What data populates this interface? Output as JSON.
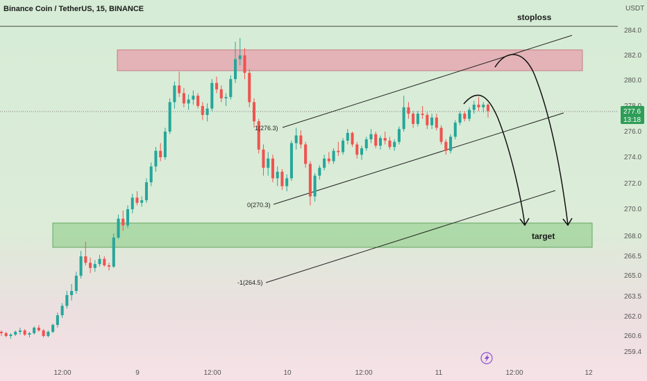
{
  "chart_data": {
    "type": "candlestick",
    "title": "Binance Coin / TetherUS, 15, BINANCE",
    "currency": "USDT",
    "y_ticks": [
      284.0,
      282.0,
      280.0,
      278.0,
      276.0,
      274.0,
      272.0,
      270.0,
      268.0,
      266.5,
      265.0,
      263.5,
      262.0,
      260.6,
      259.4
    ],
    "y_tick_labels": [
      "284.0",
      "282.0",
      "280.0",
      "278.0",
      "276.0",
      "274.0",
      "272.0",
      "270.0",
      "268.0",
      "266.5",
      "265.0",
      "263.5",
      "262.0",
      "260.6",
      "259.4"
    ],
    "x_ticks": [
      "12:00",
      "9",
      "12:00",
      "10",
      "12:00",
      "11",
      "12:00",
      "12"
    ],
    "last_price": "277.6",
    "countdown": "13:18",
    "up_color": "#26a69a",
    "down_color": "#ef5350",
    "zones": [
      {
        "name": "stoploss",
        "color": "#e8aab2",
        "low": 281.0,
        "high": 282.5
      },
      {
        "name": "target",
        "color": "#a8d8a0",
        "low": 266.8,
        "high": 268.6
      }
    ],
    "labels": {
      "stoploss": "stoploss",
      "target": "target"
    },
    "fib_levels": [
      {
        "ratio": "1",
        "value": "276.3",
        "label": "1(276.3)"
      },
      {
        "ratio": "0",
        "value": "270.3",
        "label": "0(270.3)"
      },
      {
        "ratio": "-1",
        "value": "264.5",
        "label": "-1(264.5)"
      }
    ],
    "ohlc": [
      [
        260.9,
        261.0,
        260.6,
        260.8
      ],
      [
        260.8,
        260.9,
        260.5,
        260.6
      ],
      [
        260.6,
        260.8,
        260.4,
        260.7
      ],
      [
        260.7,
        261.0,
        260.6,
        260.9
      ],
      [
        260.9,
        261.2,
        260.7,
        261.0
      ],
      [
        261.0,
        261.1,
        260.6,
        260.7
      ],
      [
        260.7,
        260.9,
        260.5,
        260.8
      ],
      [
        260.8,
        261.3,
        260.7,
        261.2
      ],
      [
        261.2,
        261.4,
        260.9,
        261.0
      ],
      [
        261.0,
        261.1,
        260.5,
        260.6
      ],
      [
        260.6,
        261.0,
        260.5,
        260.9
      ],
      [
        260.9,
        261.5,
        260.8,
        261.4
      ],
      [
        261.4,
        262.3,
        261.2,
        262.1
      ],
      [
        262.1,
        263.0,
        261.9,
        262.8
      ],
      [
        262.8,
        263.9,
        262.6,
        263.6
      ],
      [
        263.6,
        264.4,
        263.2,
        263.9
      ],
      [
        263.9,
        265.3,
        263.7,
        265.0
      ],
      [
        265.0,
        266.9,
        264.8,
        266.5
      ],
      [
        266.5,
        267.6,
        265.8,
        266.0
      ],
      [
        266.0,
        266.4,
        265.2,
        265.6
      ],
      [
        265.6,
        266.2,
        265.3,
        265.9
      ],
      [
        265.9,
        266.6,
        265.7,
        266.3
      ],
      [
        266.3,
        266.5,
        265.7,
        265.8
      ],
      [
        265.8,
        266.0,
        265.4,
        265.7
      ],
      [
        265.7,
        268.2,
        265.6,
        267.9
      ],
      [
        267.9,
        269.6,
        267.8,
        269.3
      ],
      [
        269.3,
        269.9,
        268.4,
        268.8
      ],
      [
        268.8,
        270.3,
        268.6,
        270.0
      ],
      [
        270.0,
        271.2,
        269.7,
        270.9
      ],
      [
        270.9,
        271.4,
        270.3,
        270.5
      ],
      [
        270.5,
        271.0,
        270.2,
        270.7
      ],
      [
        270.7,
        272.4,
        270.5,
        272.1
      ],
      [
        272.1,
        273.6,
        271.8,
        273.3
      ],
      [
        273.3,
        274.8,
        272.9,
        274.5
      ],
      [
        274.5,
        275.1,
        273.7,
        274.0
      ],
      [
        274.0,
        276.3,
        273.8,
        276.0
      ],
      [
        276.0,
        278.6,
        275.8,
        278.3
      ],
      [
        278.3,
        279.9,
        277.8,
        279.6
      ],
      [
        279.6,
        280.7,
        278.7,
        279.0
      ],
      [
        279.0,
        279.4,
        277.9,
        278.2
      ],
      [
        278.2,
        278.9,
        277.7,
        278.5
      ],
      [
        278.5,
        279.2,
        278.1,
        278.8
      ],
      [
        278.8,
        279.0,
        277.8,
        278.0
      ],
      [
        278.0,
        278.3,
        276.9,
        277.3
      ],
      [
        277.3,
        278.2,
        276.8,
        277.8
      ],
      [
        277.8,
        280.1,
        277.6,
        279.8
      ],
      [
        279.8,
        280.3,
        279.0,
        279.3
      ],
      [
        279.3,
        279.6,
        278.3,
        278.6
      ],
      [
        278.6,
        279.0,
        278.0,
        278.7
      ],
      [
        278.7,
        280.4,
        278.5,
        280.1
      ],
      [
        280.1,
        283.1,
        279.8,
        281.7
      ],
      [
        281.7,
        283.4,
        281.2,
        282.0
      ],
      [
        282.0,
        282.6,
        280.1,
        280.6
      ],
      [
        280.6,
        280.9,
        277.9,
        278.3
      ],
      [
        278.3,
        278.6,
        276.3,
        276.8
      ],
      [
        276.8,
        277.0,
        274.3,
        274.6
      ],
      [
        274.6,
        275.0,
        272.6,
        273.2
      ],
      [
        273.2,
        274.4,
        272.6,
        273.9
      ],
      [
        273.9,
        274.2,
        272.1,
        272.4
      ],
      [
        272.4,
        273.3,
        271.8,
        272.9
      ],
      [
        272.9,
        273.1,
        271.5,
        271.8
      ],
      [
        271.8,
        272.7,
        271.4,
        272.4
      ],
      [
        272.4,
        275.3,
        272.2,
        275.1
      ],
      [
        275.1,
        276.3,
        274.6,
        275.7
      ],
      [
        275.7,
        276.1,
        274.7,
        275.0
      ],
      [
        275.0,
        275.2,
        273.2,
        273.5
      ],
      [
        273.5,
        273.7,
        270.3,
        271.0
      ],
      [
        271.0,
        272.8,
        270.6,
        272.6
      ],
      [
        272.6,
        273.4,
        272.3,
        273.2
      ],
      [
        273.2,
        274.2,
        273.0,
        273.9
      ],
      [
        273.9,
        274.4,
        273.5,
        273.7
      ],
      [
        273.7,
        274.7,
        273.5,
        274.5
      ],
      [
        274.5,
        275.2,
        274.1,
        274.4
      ],
      [
        274.4,
        275.5,
        274.2,
        275.3
      ],
      [
        275.3,
        276.2,
        275.0,
        275.9
      ],
      [
        275.9,
        276.0,
        274.8,
        275.0
      ],
      [
        275.0,
        275.2,
        273.9,
        274.2
      ],
      [
        274.2,
        274.9,
        273.8,
        274.7
      ],
      [
        274.7,
        275.6,
        274.5,
        275.4
      ],
      [
        275.4,
        276.2,
        275.1,
        275.8
      ],
      [
        275.8,
        276.0,
        274.7,
        274.9
      ],
      [
        274.9,
        275.7,
        274.6,
        275.5
      ],
      [
        275.5,
        276.0,
        275.0,
        275.3
      ],
      [
        275.3,
        275.6,
        274.6,
        274.8
      ],
      [
        274.8,
        275.4,
        274.5,
        275.2
      ],
      [
        275.2,
        276.4,
        275.0,
        276.2
      ],
      [
        276.2,
        278.8,
        276.0,
        277.9
      ],
      [
        277.9,
        278.3,
        277.0,
        277.4
      ],
      [
        277.4,
        277.6,
        276.3,
        276.6
      ],
      [
        276.6,
        277.6,
        276.4,
        277.4
      ],
      [
        277.4,
        278.0,
        277.0,
        277.3
      ],
      [
        277.3,
        277.5,
        276.2,
        276.5
      ],
      [
        276.5,
        277.4,
        276.2,
        277.1
      ],
      [
        277.1,
        277.4,
        276.1,
        276.3
      ],
      [
        276.3,
        276.5,
        275.0,
        275.2
      ],
      [
        275.2,
        275.4,
        274.2,
        274.5
      ],
      [
        274.5,
        275.8,
        274.3,
        275.6
      ],
      [
        275.6,
        276.9,
        275.4,
        276.7
      ],
      [
        276.7,
        277.6,
        276.5,
        277.4
      ],
      [
        277.4,
        277.6,
        276.8,
        277.0
      ],
      [
        277.0,
        277.9,
        276.8,
        277.7
      ],
      [
        277.7,
        278.4,
        277.4,
        278.1
      ],
      [
        278.1,
        278.7,
        277.6,
        277.9
      ],
      [
        277.9,
        278.3,
        277.5,
        278.1
      ],
      [
        278.1,
        278.2,
        277.1,
        277.6
      ]
    ]
  },
  "toolbar": {
    "cursor_icon": "lightning-icon"
  }
}
